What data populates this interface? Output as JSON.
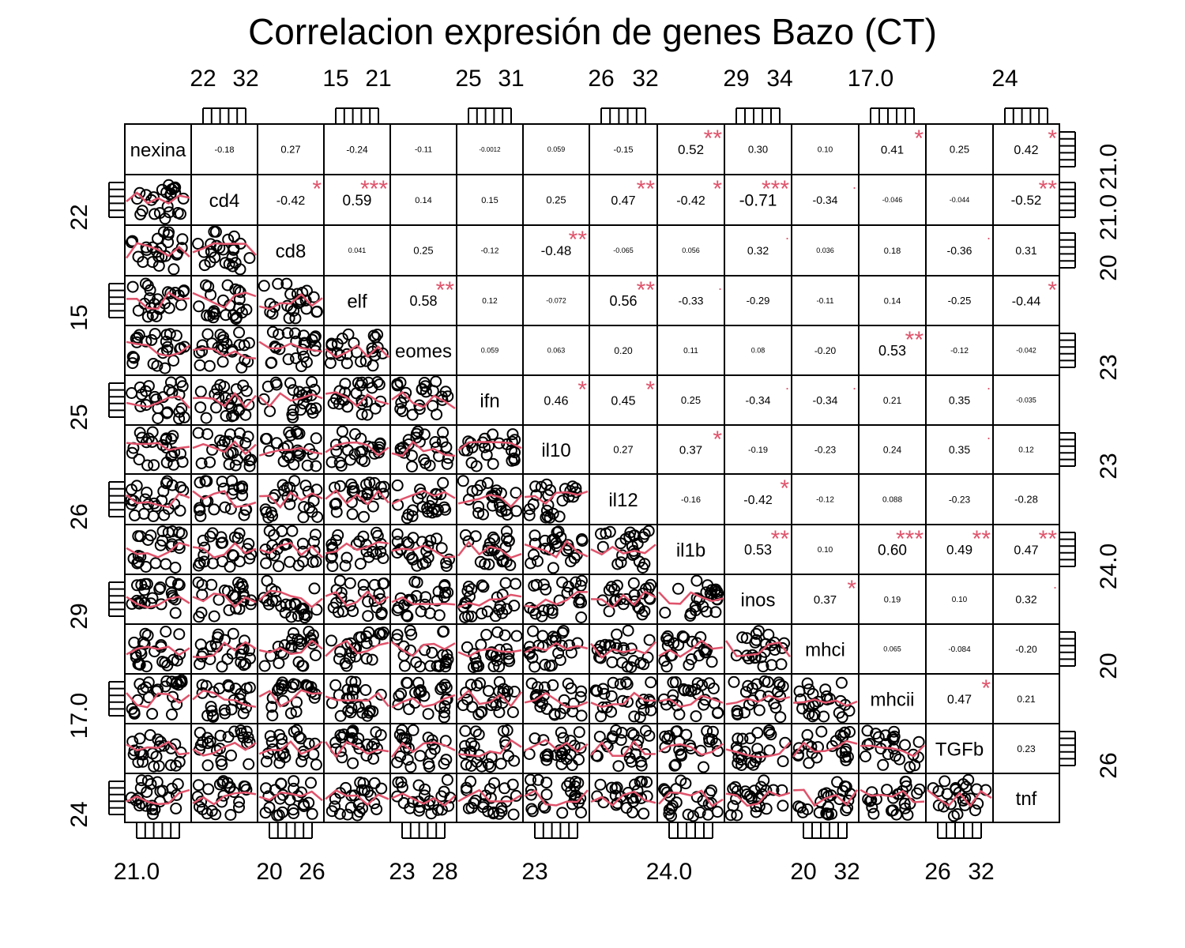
{
  "chart_data": {
    "type": "scatter",
    "subtype": "correlation-matrix",
    "title": "Correlacion expresión de genes Bazo (CT)",
    "variables": [
      "nexina",
      "cd4",
      "cd8",
      "elf",
      "eomes",
      "ifn",
      "il10",
      "il12",
      "il1b",
      "inos",
      "mhci",
      "mhcii",
      "TGFb",
      "tnf"
    ],
    "correlations": [
      {
        "row": 0,
        "col": 1,
        "value": "-0.18",
        "sig": ""
      },
      {
        "row": 0,
        "col": 2,
        "value": "0.27",
        "sig": ""
      },
      {
        "row": 0,
        "col": 3,
        "value": "-0.24",
        "sig": ""
      },
      {
        "row": 0,
        "col": 4,
        "value": "-0.11",
        "sig": ""
      },
      {
        "row": 0,
        "col": 5,
        "value": "-0.0012",
        "sig": ""
      },
      {
        "row": 0,
        "col": 6,
        "value": "0.059",
        "sig": ""
      },
      {
        "row": 0,
        "col": 7,
        "value": "-0.15",
        "sig": ""
      },
      {
        "row": 0,
        "col": 8,
        "value": "0.52",
        "sig": "**"
      },
      {
        "row": 0,
        "col": 9,
        "value": "0.30",
        "sig": ""
      },
      {
        "row": 0,
        "col": 10,
        "value": "0.10",
        "sig": ""
      },
      {
        "row": 0,
        "col": 11,
        "value": "0.41",
        "sig": "*"
      },
      {
        "row": 0,
        "col": 12,
        "value": "0.25",
        "sig": ""
      },
      {
        "row": 0,
        "col": 13,
        "value": "0.42",
        "sig": "*"
      },
      {
        "row": 1,
        "col": 2,
        "value": "-0.42",
        "sig": "*"
      },
      {
        "row": 1,
        "col": 3,
        "value": "0.59",
        "sig": "***"
      },
      {
        "row": 1,
        "col": 4,
        "value": "0.14",
        "sig": ""
      },
      {
        "row": 1,
        "col": 5,
        "value": "0.15",
        "sig": ""
      },
      {
        "row": 1,
        "col": 6,
        "value": "0.25",
        "sig": ""
      },
      {
        "row": 1,
        "col": 7,
        "value": "0.47",
        "sig": "**"
      },
      {
        "row": 1,
        "col": 8,
        "value": "-0.42",
        "sig": "*"
      },
      {
        "row": 1,
        "col": 9,
        "value": "-0.71",
        "sig": "***"
      },
      {
        "row": 1,
        "col": 10,
        "value": "-0.34",
        "sig": "."
      },
      {
        "row": 1,
        "col": 11,
        "value": "-0.046",
        "sig": ""
      },
      {
        "row": 1,
        "col": 12,
        "value": "-0.044",
        "sig": ""
      },
      {
        "row": 1,
        "col": 13,
        "value": "-0.52",
        "sig": "**"
      },
      {
        "row": 2,
        "col": 3,
        "value": "0.041",
        "sig": ""
      },
      {
        "row": 2,
        "col": 4,
        "value": "0.25",
        "sig": ""
      },
      {
        "row": 2,
        "col": 5,
        "value": "-0.12",
        "sig": ""
      },
      {
        "row": 2,
        "col": 6,
        "value": "-0.48",
        "sig": "**"
      },
      {
        "row": 2,
        "col": 7,
        "value": "-0.065",
        "sig": ""
      },
      {
        "row": 2,
        "col": 8,
        "value": "0.056",
        "sig": ""
      },
      {
        "row": 2,
        "col": 9,
        "value": "0.32",
        "sig": "."
      },
      {
        "row": 2,
        "col": 10,
        "value": "0.036",
        "sig": ""
      },
      {
        "row": 2,
        "col": 11,
        "value": "0.18",
        "sig": ""
      },
      {
        "row": 2,
        "col": 12,
        "value": "-0.36",
        "sig": "."
      },
      {
        "row": 2,
        "col": 13,
        "value": "0.31",
        "sig": ""
      },
      {
        "row": 3,
        "col": 4,
        "value": "0.58",
        "sig": "**"
      },
      {
        "row": 3,
        "col": 5,
        "value": "0.12",
        "sig": ""
      },
      {
        "row": 3,
        "col": 6,
        "value": "-0.072",
        "sig": ""
      },
      {
        "row": 3,
        "col": 7,
        "value": "0.56",
        "sig": "**"
      },
      {
        "row": 3,
        "col": 8,
        "value": "-0.33",
        "sig": "."
      },
      {
        "row": 3,
        "col": 9,
        "value": "-0.29",
        "sig": ""
      },
      {
        "row": 3,
        "col": 10,
        "value": "-0.11",
        "sig": ""
      },
      {
        "row": 3,
        "col": 11,
        "value": "0.14",
        "sig": ""
      },
      {
        "row": 3,
        "col": 12,
        "value": "-0.25",
        "sig": ""
      },
      {
        "row": 3,
        "col": 13,
        "value": "-0.44",
        "sig": "*"
      },
      {
        "row": 4,
        "col": 5,
        "value": "0.059",
        "sig": ""
      },
      {
        "row": 4,
        "col": 6,
        "value": "0.063",
        "sig": ""
      },
      {
        "row": 4,
        "col": 7,
        "value": "0.20",
        "sig": ""
      },
      {
        "row": 4,
        "col": 8,
        "value": "0.11",
        "sig": ""
      },
      {
        "row": 4,
        "col": 9,
        "value": "0.08",
        "sig": ""
      },
      {
        "row": 4,
        "col": 10,
        "value": "-0.20",
        "sig": ""
      },
      {
        "row": 4,
        "col": 11,
        "value": "0.53",
        "sig": "**"
      },
      {
        "row": 4,
        "col": 12,
        "value": "-0.12",
        "sig": ""
      },
      {
        "row": 4,
        "col": 13,
        "value": "-0.042",
        "sig": ""
      },
      {
        "row": 5,
        "col": 6,
        "value": "0.46",
        "sig": "*"
      },
      {
        "row": 5,
        "col": 7,
        "value": "0.45",
        "sig": "*"
      },
      {
        "row": 5,
        "col": 8,
        "value": "0.25",
        "sig": ""
      },
      {
        "row": 5,
        "col": 9,
        "value": "-0.34",
        "sig": "."
      },
      {
        "row": 5,
        "col": 10,
        "value": "-0.34",
        "sig": "."
      },
      {
        "row": 5,
        "col": 11,
        "value": "0.21",
        "sig": ""
      },
      {
        "row": 5,
        "col": 12,
        "value": "0.35",
        "sig": "."
      },
      {
        "row": 5,
        "col": 13,
        "value": "-0.035",
        "sig": ""
      },
      {
        "row": 6,
        "col": 7,
        "value": "0.27",
        "sig": ""
      },
      {
        "row": 6,
        "col": 8,
        "value": "0.37",
        "sig": "*"
      },
      {
        "row": 6,
        "col": 9,
        "value": "-0.19",
        "sig": ""
      },
      {
        "row": 6,
        "col": 10,
        "value": "-0.23",
        "sig": ""
      },
      {
        "row": 6,
        "col": 11,
        "value": "0.24",
        "sig": ""
      },
      {
        "row": 6,
        "col": 12,
        "value": "0.35",
        "sig": "."
      },
      {
        "row": 6,
        "col": 13,
        "value": "0.12",
        "sig": ""
      },
      {
        "row": 7,
        "col": 8,
        "value": "-0.16",
        "sig": ""
      },
      {
        "row": 7,
        "col": 9,
        "value": "-0.42",
        "sig": "*"
      },
      {
        "row": 7,
        "col": 10,
        "value": "-0.12",
        "sig": ""
      },
      {
        "row": 7,
        "col": 11,
        "value": "0.088",
        "sig": ""
      },
      {
        "row": 7,
        "col": 12,
        "value": "-0.23",
        "sig": ""
      },
      {
        "row": 7,
        "col": 13,
        "value": "-0.28",
        "sig": ""
      },
      {
        "row": 8,
        "col": 9,
        "value": "0.53",
        "sig": "**"
      },
      {
        "row": 8,
        "col": 10,
        "value": "0.10",
        "sig": ""
      },
      {
        "row": 8,
        "col": 11,
        "value": "0.60",
        "sig": "***"
      },
      {
        "row": 8,
        "col": 12,
        "value": "0.49",
        "sig": "**"
      },
      {
        "row": 8,
        "col": 13,
        "value": "0.47",
        "sig": "**"
      },
      {
        "row": 9,
        "col": 10,
        "value": "0.37",
        "sig": "*"
      },
      {
        "row": 9,
        "col": 11,
        "value": "0.19",
        "sig": ""
      },
      {
        "row": 9,
        "col": 12,
        "value": "0.10",
        "sig": ""
      },
      {
        "row": 9,
        "col": 13,
        "value": "0.32",
        "sig": "."
      },
      {
        "row": 10,
        "col": 11,
        "value": "0.065",
        "sig": ""
      },
      {
        "row": 10,
        "col": 12,
        "value": "-0.084",
        "sig": ""
      },
      {
        "row": 10,
        "col": 13,
        "value": "-0.20",
        "sig": ""
      },
      {
        "row": 11,
        "col": 12,
        "value": "0.47",
        "sig": "*"
      },
      {
        "row": 11,
        "col": 13,
        "value": "0.21",
        "sig": ""
      },
      {
        "row": 12,
        "col": 13,
        "value": "0.23",
        "sig": ""
      }
    ],
    "axis_ticks": {
      "top": [
        {
          "col": 1,
          "labels": [
            "22",
            "32"
          ]
        },
        {
          "col": 3,
          "labels": [
            "15",
            "21"
          ]
        },
        {
          "col": 5,
          "labels": [
            "25",
            "31"
          ]
        },
        {
          "col": 7,
          "labels": [
            "26",
            "32"
          ]
        },
        {
          "col": 9,
          "labels": [
            "29",
            "34"
          ]
        },
        {
          "col": 11,
          "labels": [
            "17.0"
          ]
        },
        {
          "col": 13,
          "labels": [
            "24"
          ]
        }
      ],
      "bottom": [
        {
          "col": 0,
          "labels": [
            "21.0"
          ]
        },
        {
          "col": 2,
          "labels": [
            "20",
            "26"
          ]
        },
        {
          "col": 4,
          "labels": [
            "23",
            "28"
          ]
        },
        {
          "col": 6,
          "labels": [
            "23"
          ]
        },
        {
          "col": 8,
          "labels": [
            "24.0"
          ]
        },
        {
          "col": 10,
          "labels": [
            "20",
            "32"
          ]
        },
        {
          "col": 12,
          "labels": [
            "26",
            "32"
          ]
        }
      ],
      "left": [
        {
          "row": 1,
          "labels": [
            "22"
          ]
        },
        {
          "row": 3,
          "labels": [
            "15"
          ]
        },
        {
          "row": 5,
          "labels": [
            "25"
          ]
        },
        {
          "row": 7,
          "labels": [
            "26"
          ]
        },
        {
          "row": 9,
          "labels": [
            "29"
          ]
        },
        {
          "row": 11,
          "labels": [
            "17.0"
          ]
        },
        {
          "row": 13,
          "labels": [
            "24"
          ]
        }
      ],
      "right": [
        {
          "row": 0,
          "labels": [
            "21.0"
          ]
        },
        {
          "row": 1,
          "labels": [
            "21.0"
          ]
        },
        {
          "row": 2,
          "labels": [
            "20"
          ]
        },
        {
          "row": 4,
          "labels": [
            "23"
          ]
        },
        {
          "row": 6,
          "labels": [
            "23"
          ]
        },
        {
          "row": 8,
          "labels": [
            "24.0"
          ]
        },
        {
          "row": 10,
          "labels": [
            "20"
          ]
        },
        {
          "row": 12,
          "labels": [
            "26"
          ]
        }
      ]
    },
    "smoother": true,
    "grid": false
  },
  "colors": {
    "points": "#000000",
    "smoother": "#DF536B",
    "significance": "#DF536B",
    "panel_border": "#000000",
    "background": "#FFFFFF"
  }
}
